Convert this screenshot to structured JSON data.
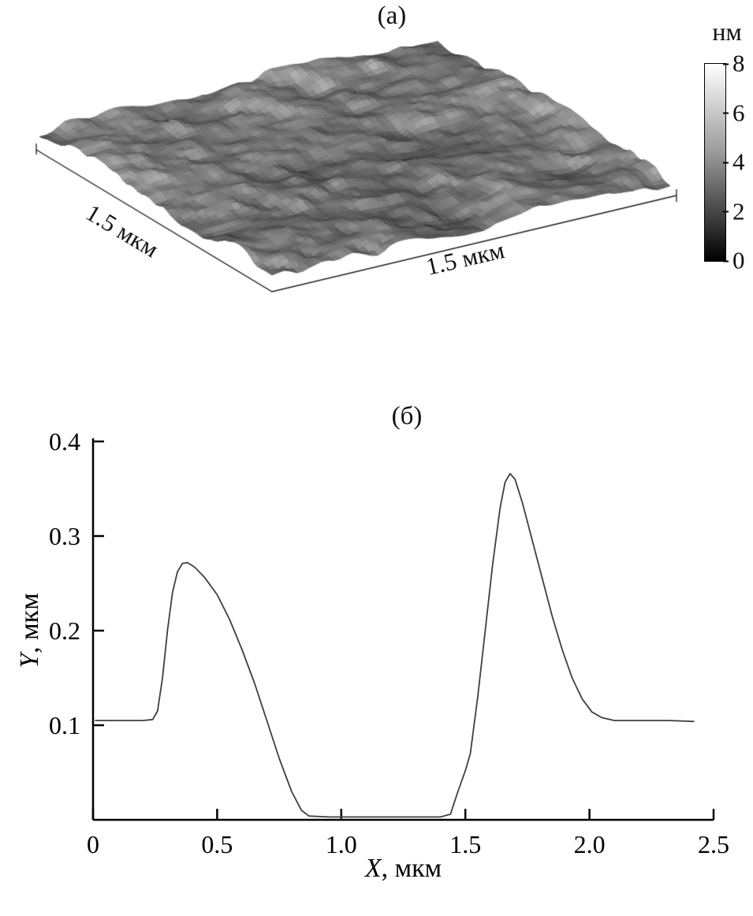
{
  "panels": {
    "a_label": "(а)",
    "b_label": "(б)"
  },
  "chart_data": [
    {
      "type": "heatmap",
      "subtype": "3d-surface-topography",
      "panel": "(а)",
      "axis_label_left": "1.5 мкм",
      "axis_label_right": "1.5 мкм",
      "colorbar": {
        "title": "нм",
        "tick_labels": [
          "8",
          "6",
          "4",
          "2",
          "0"
        ],
        "min": 0,
        "max": 8,
        "gradient_top": "#ffffff",
        "gradient_bottom": "#000000"
      },
      "surface_base_gray": "#6e6e6e"
    },
    {
      "type": "line",
      "panel": "(б)",
      "xlabel_italic": "X",
      "xlabel_rest": ", мкм",
      "ylabel_italic": "Y",
      "ylabel_rest": ", мкм",
      "xlim": [
        0,
        2.5
      ],
      "ylim": [
        0,
        0.4
      ],
      "x_tick_values": [
        0,
        0.5,
        1.0,
        1.5,
        2.0,
        2.5
      ],
      "x_tick_labels": [
        "0",
        "0.5",
        "1.0",
        "1.5",
        "2.0",
        "2.5"
      ],
      "y_tick_values": [
        0.1,
        0.2,
        0.3,
        0.4
      ],
      "y_tick_labels": [
        "0.1",
        "0.2",
        "0.3",
        "0.4"
      ],
      "line_color": "#3f3f3f",
      "points": [
        [
          0.01,
          0.105
        ],
        [
          0.12,
          0.105
        ],
        [
          0.2,
          0.105
        ],
        [
          0.24,
          0.106
        ],
        [
          0.26,
          0.115
        ],
        [
          0.28,
          0.15
        ],
        [
          0.3,
          0.2
        ],
        [
          0.32,
          0.24
        ],
        [
          0.34,
          0.262
        ],
        [
          0.36,
          0.271
        ],
        [
          0.38,
          0.272
        ],
        [
          0.41,
          0.267
        ],
        [
          0.45,
          0.256
        ],
        [
          0.5,
          0.238
        ],
        [
          0.55,
          0.212
        ],
        [
          0.6,
          0.18
        ],
        [
          0.65,
          0.145
        ],
        [
          0.7,
          0.105
        ],
        [
          0.75,
          0.065
        ],
        [
          0.8,
          0.03
        ],
        [
          0.84,
          0.01
        ],
        [
          0.87,
          0.004
        ],
        [
          0.95,
          0.003
        ],
        [
          1.1,
          0.003
        ],
        [
          1.25,
          0.003
        ],
        [
          1.4,
          0.003
        ],
        [
          1.44,
          0.006
        ],
        [
          1.47,
          0.03
        ],
        [
          1.5,
          0.052
        ],
        [
          1.52,
          0.07
        ],
        [
          1.55,
          0.13
        ],
        [
          1.58,
          0.2
        ],
        [
          1.61,
          0.27
        ],
        [
          1.64,
          0.33
        ],
        [
          1.66,
          0.357
        ],
        [
          1.68,
          0.366
        ],
        [
          1.7,
          0.36
        ],
        [
          1.73,
          0.335
        ],
        [
          1.77,
          0.295
        ],
        [
          1.81,
          0.255
        ],
        [
          1.85,
          0.215
        ],
        [
          1.89,
          0.18
        ],
        [
          1.93,
          0.15
        ],
        [
          1.97,
          0.128
        ],
        [
          2.01,
          0.114
        ],
        [
          2.05,
          0.108
        ],
        [
          2.1,
          0.105
        ],
        [
          2.2,
          0.105
        ],
        [
          2.32,
          0.105
        ],
        [
          2.42,
          0.104
        ]
      ]
    }
  ]
}
